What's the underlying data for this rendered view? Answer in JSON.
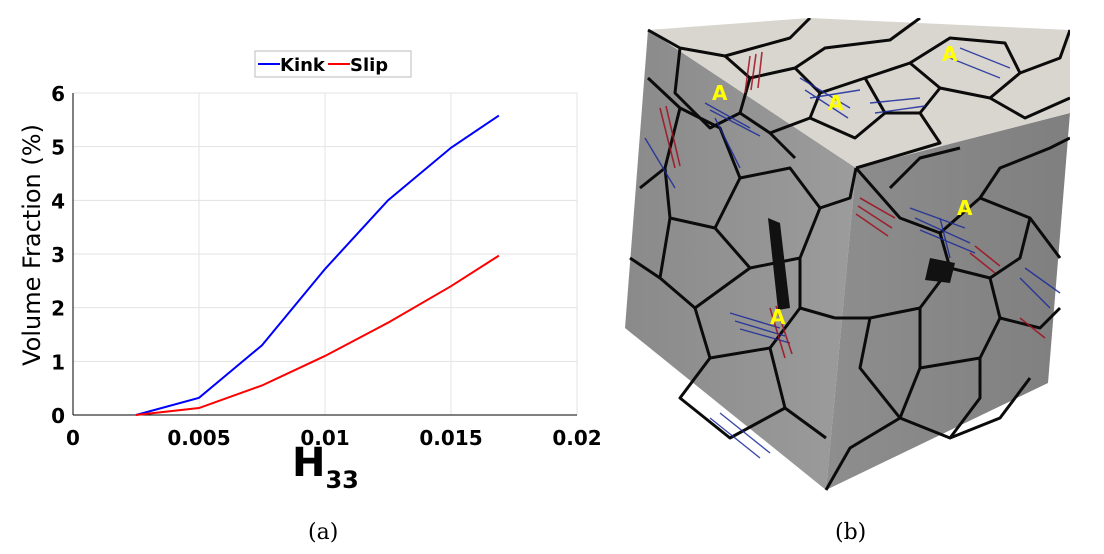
{
  "panel_a": {
    "caption": "(a)",
    "chart_data": {
      "type": "line",
      "title": "",
      "xlabel": "H",
      "xlabel_subscript": "33",
      "ylabel": "Volume Fraction (%)",
      "xlim": [
        0,
        0.02
      ],
      "ylim": [
        0,
        6
      ],
      "x_ticks": [
        0,
        0.005,
        0.01,
        0.015,
        0.02
      ],
      "x_tick_labels": [
        "0",
        "0.005",
        "0.01",
        "0.015",
        "0.02"
      ],
      "y_ticks": [
        0,
        1,
        2,
        3,
        4,
        5,
        6
      ],
      "y_tick_labels": [
        "0",
        "1",
        "2",
        "3",
        "4",
        "5",
        "6"
      ],
      "grid": true,
      "legend_position": "top-center",
      "series": [
        {
          "name": "Kink",
          "color": "#0000ff",
          "x": [
            0.0025,
            0.005,
            0.0075,
            0.01,
            0.0125,
            0.015,
            0.0169
          ],
          "y": [
            0.0,
            0.32,
            1.3,
            2.72,
            4.0,
            4.98,
            5.58
          ]
        },
        {
          "name": "Slip",
          "color": "#ff0000",
          "x": [
            0.0025,
            0.005,
            0.0075,
            0.01,
            0.0125,
            0.015,
            0.0169
          ],
          "y": [
            0.0,
            0.13,
            0.55,
            1.1,
            1.72,
            2.4,
            2.97
          ]
        }
      ]
    }
  },
  "panel_b": {
    "caption": "(b)",
    "label_text": "A",
    "label_color": "#ffff00",
    "kink_color": "#1a2a9a",
    "slip_color": "#a01020",
    "top_face_color": "#d9d6cf",
    "side_face_color": "#8c8c8c"
  }
}
